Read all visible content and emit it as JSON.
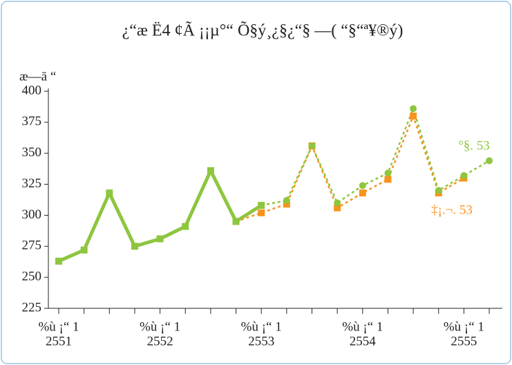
{
  "chart_data": {
    "type": "line",
    "title": "¿“æ Ë4 ¢Ã ¡¡µ°“ Õ§ý¸¿§¿“§ —(  “§“ª¥®ý)",
    "y_label": "æ—ā  “",
    "categories": [
      "%ù ¡“  1",
      null,
      null,
      null,
      "%ù ¡“  1",
      null,
      null,
      null,
      "%ù ¡“  1",
      null,
      null,
      null,
      "%ù ¡“  1",
      null,
      null,
      null,
      "%ù ¡“  1",
      null
    ],
    "category_years": [
      "2551",
      null,
      null,
      null,
      "2552",
      null,
      null,
      null,
      "2553",
      null,
      null,
      null,
      "2554",
      null,
      null,
      null,
      "2555",
      null
    ],
    "series": [
      {
        "color": "#8dc63f",
        "style": "solid",
        "marker": "square",
        "values": [
          263,
          272,
          318,
          275,
          281,
          291,
          336,
          295,
          308,
          null,
          null,
          null,
          null,
          null,
          null,
          null,
          null,
          null
        ]
      },
      {
        "name": "‡¡.¬. 53",
        "color": "#f7941d",
        "style": "dashed",
        "marker": "square",
        "values": [
          null,
          null,
          null,
          null,
          null,
          null,
          null,
          295,
          302,
          309,
          356,
          306,
          318,
          329,
          380,
          318,
          330,
          null
        ]
      },
      {
        "name": "°§. 53",
        "color": "#8dc63f",
        "style": "dashed",
        "marker": "circle",
        "values": [
          null,
          null,
          null,
          null,
          null,
          null,
          null,
          null,
          308,
          312,
          356,
          310,
          324,
          334,
          386,
          320,
          332,
          344
        ]
      }
    ],
    "ylim": [
      225,
      400
    ],
    "yticks": [
      225,
      250,
      275,
      300,
      325,
      350,
      375,
      400
    ]
  }
}
